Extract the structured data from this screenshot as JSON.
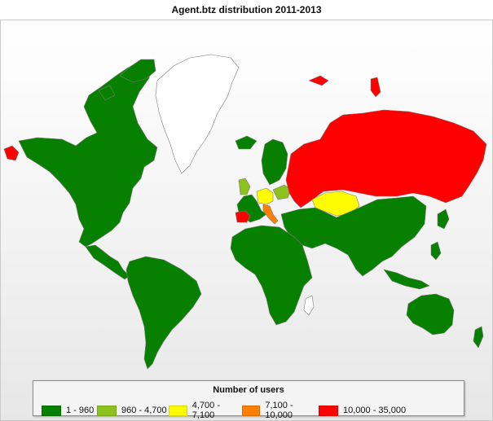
{
  "title": "Agent.btz distribution 2011-2013",
  "legend": {
    "title": "Number of users",
    "items": [
      {
        "label": "1 - 960",
        "color": "#078000"
      },
      {
        "label": "960 - 4,700",
        "color": "#8cc21d"
      },
      {
        "label": "4,700 - 7,100",
        "color": "#fffb00"
      },
      {
        "label": "7,100 - 10,000",
        "color": "#ff7f00"
      },
      {
        "label": "10,000 - 35,000",
        "color": "#ff0000"
      }
    ]
  },
  "no_data_color": "#ffffff",
  "regions": [
    {
      "name": "north-america",
      "tier": 0
    },
    {
      "name": "greenland",
      "tier": null
    },
    {
      "name": "south-america",
      "tier": 0
    },
    {
      "name": "africa",
      "tier": 0
    },
    {
      "name": "western-europe",
      "tier": 0
    },
    {
      "name": "united-kingdom",
      "tier": 1
    },
    {
      "name": "poland-region",
      "tier": 1
    },
    {
      "name": "germany-region",
      "tier": 2
    },
    {
      "name": "kazakhstan",
      "tier": 2
    },
    {
      "name": "italy",
      "tier": 3
    },
    {
      "name": "russia",
      "tier": 4
    },
    {
      "name": "spain",
      "tier": 4
    },
    {
      "name": "middle-east-asia",
      "tier": 0
    },
    {
      "name": "australia",
      "tier": 0
    }
  ]
}
